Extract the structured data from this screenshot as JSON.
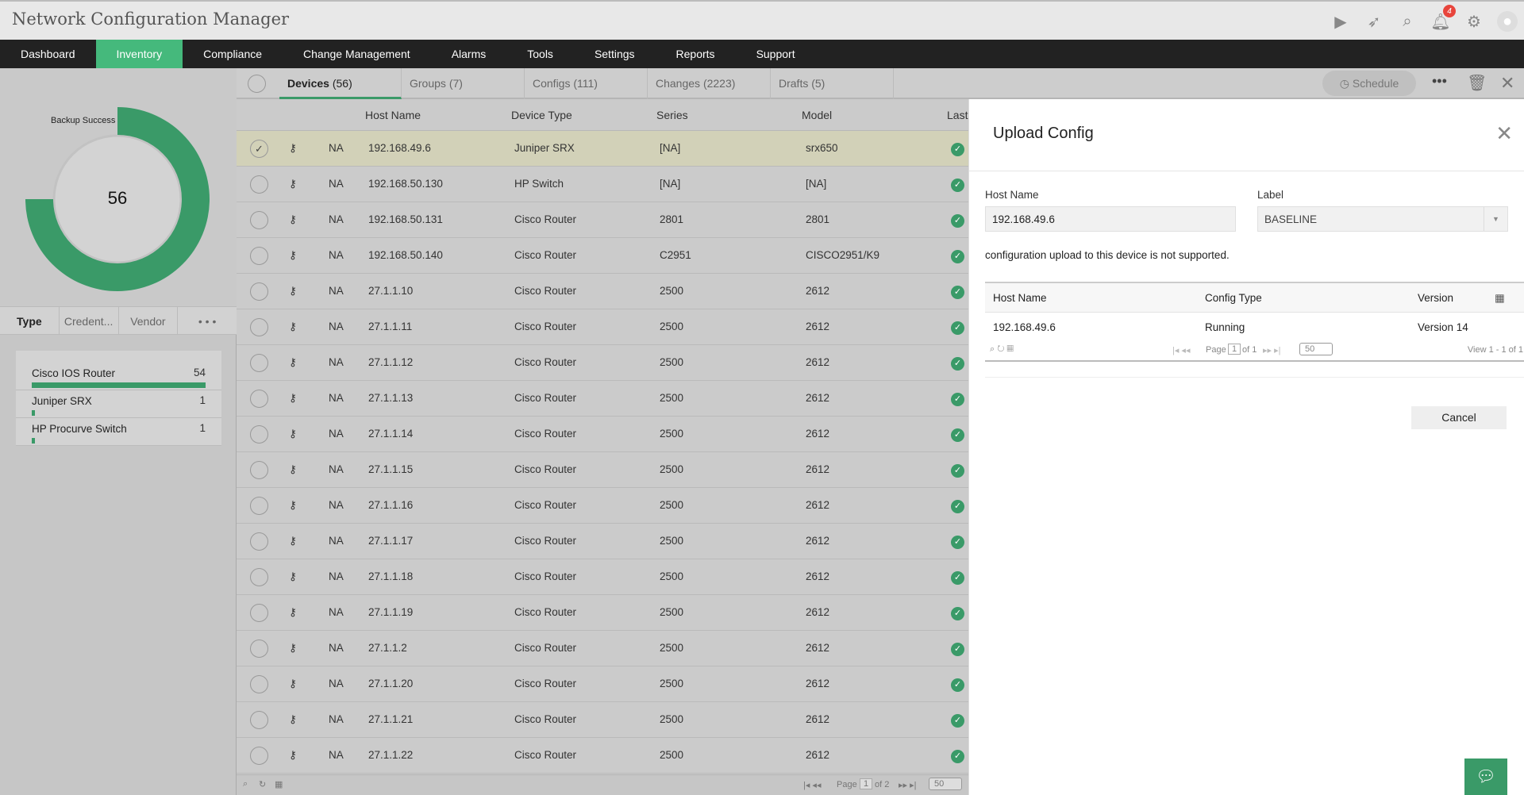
{
  "app": {
    "title": "Network Configuration Manager",
    "notification_count": "4"
  },
  "nav": [
    "Dashboard",
    "Inventory",
    "Compliance",
    "Change Management",
    "Alarms",
    "Tools",
    "Settings",
    "Reports",
    "Support"
  ],
  "left": {
    "donut_label": "Backup Success",
    "donut_total": "56",
    "tabs": [
      "Type",
      "Credent...",
      "Vendor",
      "• • •"
    ],
    "types": [
      {
        "name": "Cisco IOS Router",
        "count": "54",
        "fraction": 1.0
      },
      {
        "name": "Juniper SRX",
        "count": "1",
        "fraction": 0.02
      },
      {
        "name": "HP Procurve Switch",
        "count": "1",
        "fraction": 0.02
      }
    ]
  },
  "subtabs": [
    {
      "label": "Devices",
      "count": "(56)"
    },
    {
      "label": "Groups",
      "count": "(7)"
    },
    {
      "label": "Configs",
      "count": "(111)"
    },
    {
      "label": "Changes",
      "count": "(2223)"
    },
    {
      "label": "Drafts",
      "count": "(5)"
    }
  ],
  "toolbar": {
    "schedule": "Schedule"
  },
  "table": {
    "headers": [
      "Host Name",
      "Device Type",
      "Series",
      "Model",
      "Last"
    ],
    "rows": [
      [
        "NA",
        "192.168.49.6",
        "Juniper SRX",
        "[NA]",
        "srx650"
      ],
      [
        "NA",
        "192.168.50.130",
        "HP Switch",
        "[NA]",
        "[NA]"
      ],
      [
        "NA",
        "192.168.50.131",
        "Cisco Router",
        "2801",
        "2801"
      ],
      [
        "NA",
        "192.168.50.140",
        "Cisco Router",
        "C2951",
        "CISCO2951/K9"
      ],
      [
        "NA",
        "27.1.1.10",
        "Cisco Router",
        "2500",
        "2612"
      ],
      [
        "NA",
        "27.1.1.11",
        "Cisco Router",
        "2500",
        "2612"
      ],
      [
        "NA",
        "27.1.1.12",
        "Cisco Router",
        "2500",
        "2612"
      ],
      [
        "NA",
        "27.1.1.13",
        "Cisco Router",
        "2500",
        "2612"
      ],
      [
        "NA",
        "27.1.1.14",
        "Cisco Router",
        "2500",
        "2612"
      ],
      [
        "NA",
        "27.1.1.15",
        "Cisco Router",
        "2500",
        "2612"
      ],
      [
        "NA",
        "27.1.1.16",
        "Cisco Router",
        "2500",
        "2612"
      ],
      [
        "NA",
        "27.1.1.17",
        "Cisco Router",
        "2500",
        "2612"
      ],
      [
        "NA",
        "27.1.1.18",
        "Cisco Router",
        "2500",
        "2612"
      ],
      [
        "NA",
        "27.1.1.19",
        "Cisco Router",
        "2500",
        "2612"
      ],
      [
        "NA",
        "27.1.1.2",
        "Cisco Router",
        "2500",
        "2612"
      ],
      [
        "NA",
        "27.1.1.20",
        "Cisco Router",
        "2500",
        "2612"
      ],
      [
        "NA",
        "27.1.1.21",
        "Cisco Router",
        "2500",
        "2612"
      ],
      [
        "NA",
        "27.1.1.22",
        "Cisco Router",
        "2500",
        "2612"
      ]
    ],
    "pager": {
      "page_label": "Page",
      "page": "1",
      "of": "of 2",
      "per_page": "50"
    }
  },
  "modal": {
    "title": "Upload Config",
    "host_label": "Host Name",
    "host_value": "192.168.49.6",
    "label_label": "Label",
    "label_value": "BASELINE",
    "message": "configuration upload to this device is not supported.",
    "grid": {
      "headers": [
        "Host Name",
        "Config Type",
        "Version"
      ],
      "row": [
        "192.168.49.6",
        "Running",
        "Version 14"
      ],
      "page_label": "Page",
      "page": "1",
      "of": "of 1",
      "per_page": "50",
      "view": "View 1 - 1 of 1"
    },
    "cancel": "Cancel"
  }
}
